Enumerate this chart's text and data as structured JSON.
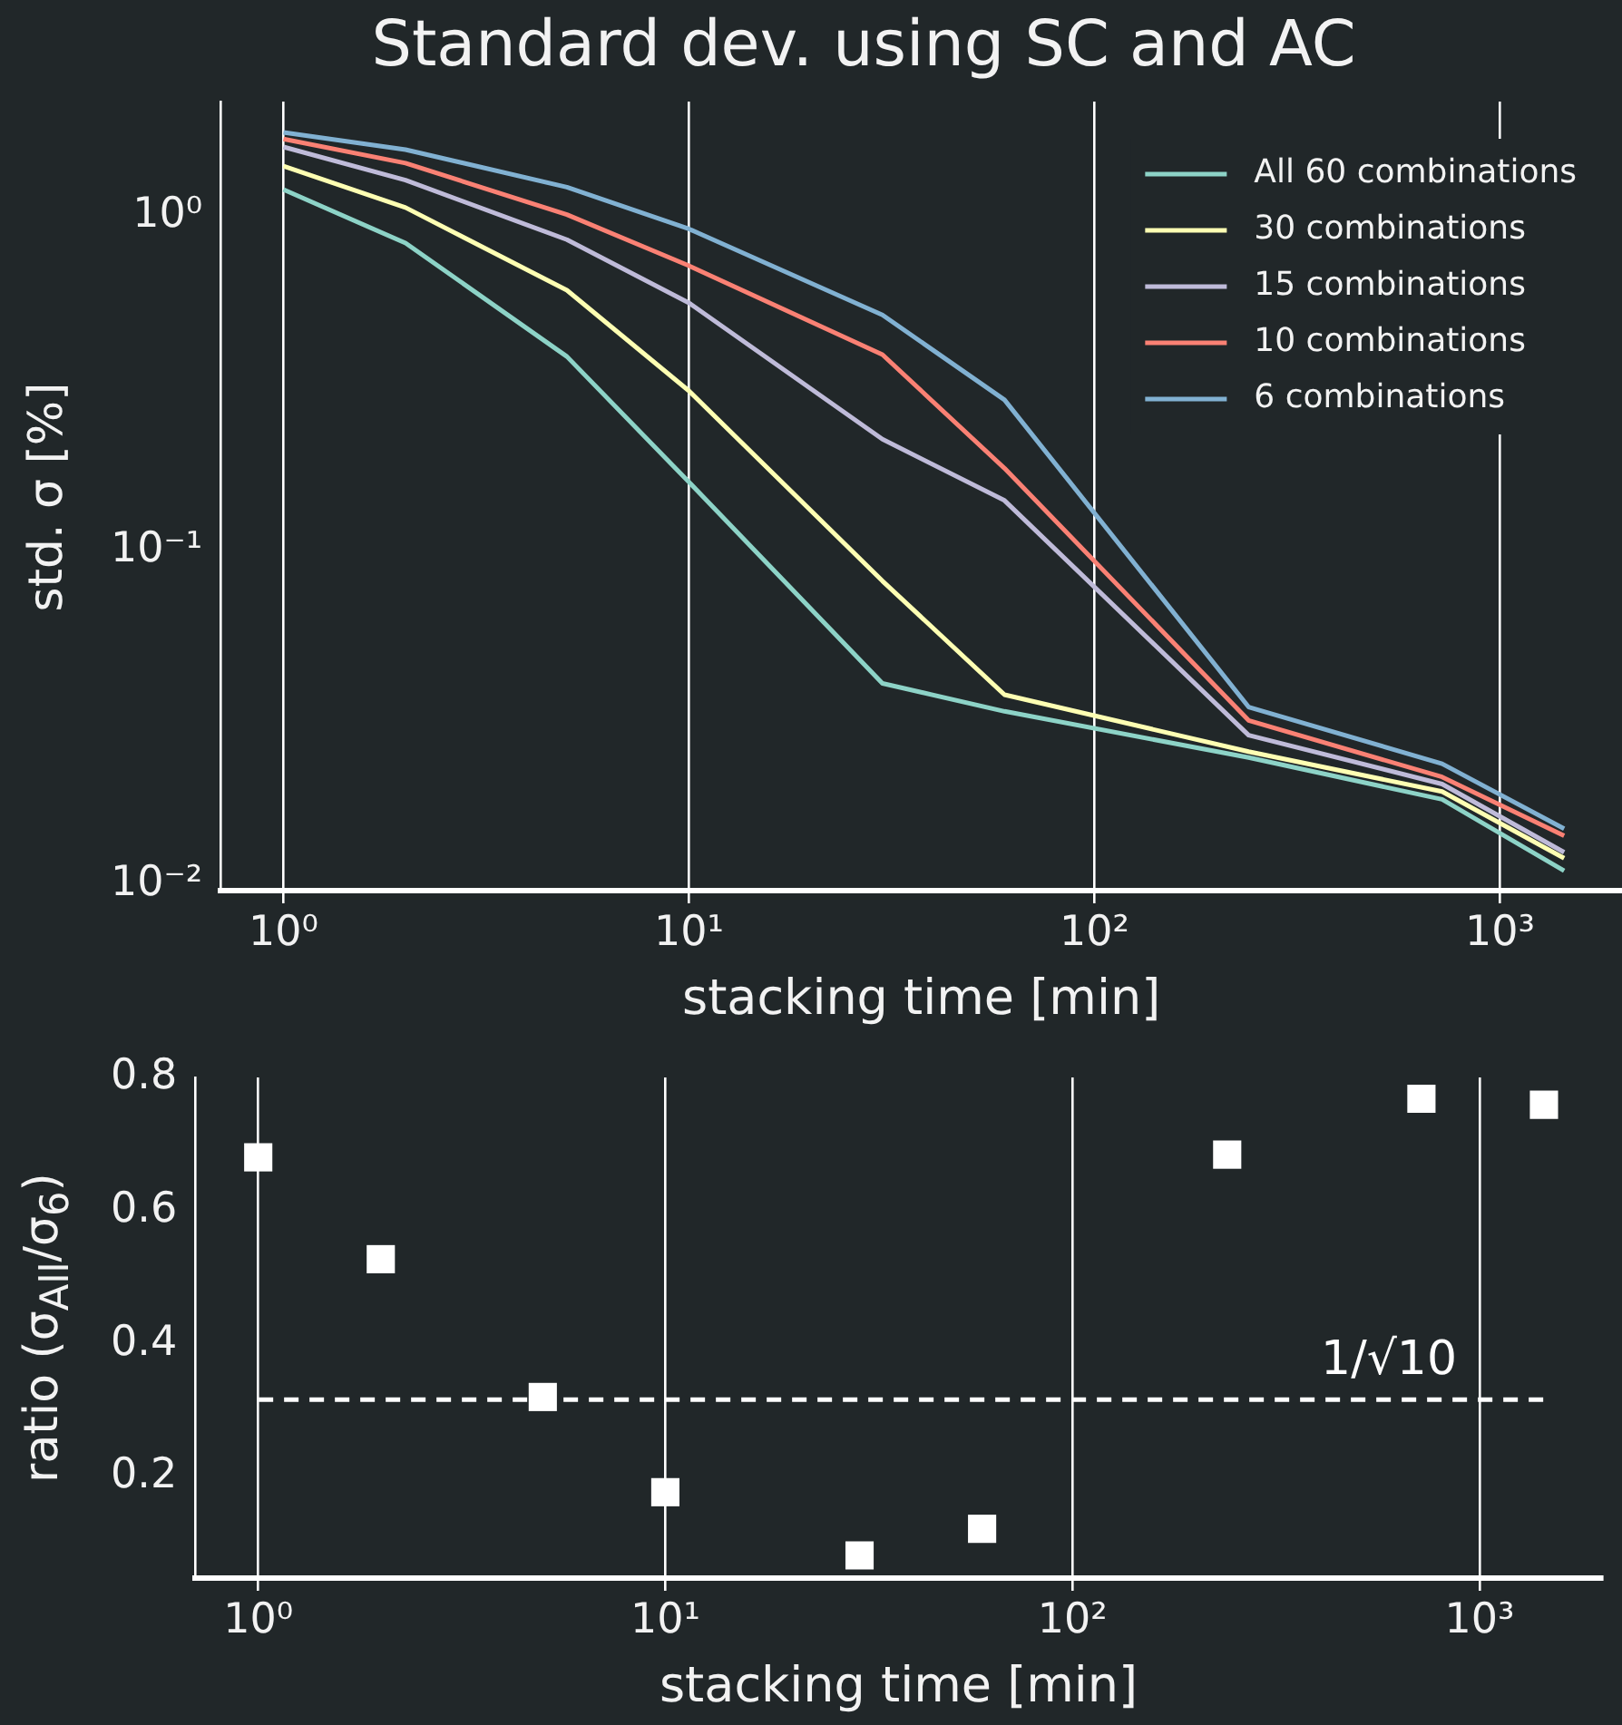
{
  "chart_data": [
    {
      "type": "line",
      "title": "Standard dev. using SC and AC",
      "xlabel": "stacking time [min]",
      "ylabel": "std. σ [%]",
      "x": [
        1,
        2,
        5,
        10,
        30,
        60,
        240,
        720,
        1440
      ],
      "series": [
        {
          "name": "All 60 combinations",
          "color": "#8dd3c7",
          "values": [
            1.2,
            0.83,
            0.38,
            0.16,
            0.04,
            0.033,
            0.024,
            0.018,
            0.011
          ]
        },
        {
          "name": "30 combinations",
          "color": "#feffb3",
          "values": [
            1.41,
            1.06,
            0.6,
            0.3,
            0.081,
            0.037,
            0.025,
            0.019,
            0.012
          ]
        },
        {
          "name": "15 combinations",
          "color": "#bfbbd9",
          "values": [
            1.61,
            1.28,
            0.85,
            0.55,
            0.215,
            0.141,
            0.028,
            0.02,
            0.0125
          ]
        },
        {
          "name": "10 combinations",
          "color": "#fa8174",
          "values": [
            1.7,
            1.44,
            1.01,
            0.71,
            0.385,
            0.176,
            0.031,
            0.021,
            0.014
          ]
        },
        {
          "name": "6 combinations",
          "color": "#81b1d2",
          "values": [
            1.78,
            1.58,
            1.22,
            0.915,
            0.506,
            0.282,
            0.034,
            0.023,
            0.0147
          ]
        }
      ],
      "log": "xy",
      "xlim": [
        0.7,
        2000
      ],
      "ylim": [
        0.0096,
        2.2
      ],
      "xticks": [
        {
          "value": 1,
          "label": "10⁰"
        },
        {
          "value": 10,
          "label": "10¹"
        },
        {
          "value": 100,
          "label": "10²"
        },
        {
          "value": 1000,
          "label": "10³"
        }
      ],
      "yticks": [
        {
          "value": 0.01,
          "label": "10⁻²"
        },
        {
          "value": 0.1,
          "label": "10⁻¹"
        },
        {
          "value": 1,
          "label": "10⁰"
        }
      ],
      "grid": "x",
      "legend": "top right",
      "marker": "none",
      "line_style": "solid"
    },
    {
      "type": "scatter",
      "xlabel": "stacking time [min]",
      "ylabel": "ratio (σ$_{All}$/σ$_{6}$)",
      "x": [
        1,
        2,
        5,
        10,
        30,
        60,
        240,
        720,
        1440
      ],
      "values": [
        0.68,
        0.527,
        0.32,
        0.177,
        0.082,
        0.122,
        0.684,
        0.768,
        0.759
      ],
      "color": "#ffffff",
      "log": "x",
      "xlim": [
        0.7,
        2000
      ],
      "ylim": [
        0.048,
        0.8
      ],
      "xticks": [
        {
          "value": 1,
          "label": "10⁰"
        },
        {
          "value": 10,
          "label": "10¹"
        },
        {
          "value": 100,
          "label": "10²"
        },
        {
          "value": 1000,
          "label": "10³"
        }
      ],
      "yticks": [
        0.2,
        0.4,
        0.6,
        0.8
      ],
      "grid": "x",
      "marker": "square",
      "ref_lines": [
        {
          "axis": "y",
          "value": 0.316,
          "label": "1/√10",
          "color": "#ffffff",
          "line_style": "dashed"
        }
      ]
    }
  ]
}
